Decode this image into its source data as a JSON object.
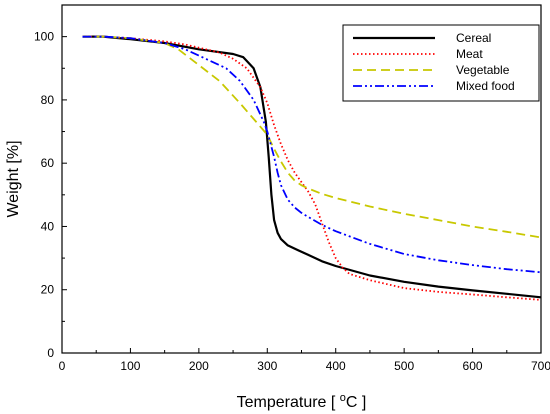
{
  "chart_data": {
    "type": "line",
    "xlabel": "Temperature [ °C ]",
    "xlabel_parts": [
      "Temperature [ ",
      "o",
      "C ]"
    ],
    "ylabel": "Weight [%]",
    "xlim": [
      0,
      700
    ],
    "ylim": [
      0,
      110
    ],
    "xticks": [
      0,
      100,
      200,
      300,
      400,
      500,
      600,
      700
    ],
    "yticks": [
      0,
      20,
      40,
      60,
      80,
      100
    ],
    "grid": false,
    "legend_position": "top-right",
    "series": [
      {
        "name": "Cereal",
        "color": "#000000",
        "style": "solid",
        "x": [
          30,
          60,
          100,
          150,
          200,
          250,
          265,
          280,
          290,
          298,
          302,
          306,
          310,
          315,
          320,
          330,
          345,
          360,
          380,
          400,
          450,
          500,
          550,
          600,
          650,
          700
        ],
        "y": [
          100,
          100,
          99.2,
          98,
          96,
          94.5,
          93.5,
          90,
          84,
          73,
          62,
          50,
          42,
          38,
          36,
          34,
          32.5,
          31,
          29,
          27.5,
          24.5,
          22.5,
          21,
          19.8,
          18.7,
          17.6
        ]
      },
      {
        "name": "Meat",
        "color": "#ff0000",
        "style": "dotted",
        "x": [
          30,
          60,
          100,
          150,
          180,
          200,
          230,
          250,
          270,
          290,
          300,
          310,
          320,
          330,
          340,
          350,
          360,
          370,
          380,
          390,
          400,
          410,
          420,
          450,
          500,
          550,
          600,
          650,
          700
        ],
        "y": [
          100,
          100,
          99.5,
          98.5,
          97.5,
          96.5,
          95,
          93,
          90,
          84,
          79,
          72,
          66,
          61,
          57,
          54,
          51,
          47,
          41,
          35,
          30,
          27,
          25,
          23,
          20.5,
          19.3,
          18.5,
          17.6,
          16.8
        ]
      },
      {
        "name": "Vegetable",
        "color": "#c8c800",
        "style": "dashed",
        "x": [
          30,
          60,
          100,
          150,
          170,
          200,
          230,
          260,
          280,
          300,
          310,
          320,
          330,
          340,
          350,
          360,
          380,
          400,
          450,
          500,
          550,
          600,
          650,
          700
        ],
        "y": [
          100,
          100,
          99.5,
          98,
          96,
          91,
          86,
          79,
          74,
          69,
          64.5,
          60.5,
          57,
          54.5,
          53,
          52,
          50.3,
          49,
          46.3,
          44,
          42,
          40,
          38.3,
          36.5
        ]
      },
      {
        "name": "Mixed food",
        "color": "#0000ff",
        "style": "dashdotdot",
        "x": [
          30,
          60,
          100,
          150,
          180,
          210,
          240,
          260,
          280,
          295,
          300,
          305,
          310,
          315,
          320,
          330,
          340,
          350,
          360,
          380,
          400,
          450,
          500,
          550,
          600,
          650,
          700
        ],
        "y": [
          100,
          100,
          99.5,
          98,
          96,
          93,
          90,
          86,
          80,
          73,
          70,
          66,
          62,
          57,
          53,
          48.5,
          46,
          44.3,
          43,
          40.5,
          38.5,
          34.5,
          31.3,
          29.3,
          27.8,
          26.5,
          25.5
        ]
      }
    ]
  }
}
